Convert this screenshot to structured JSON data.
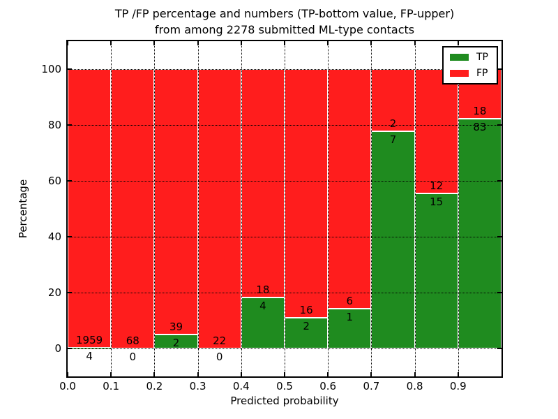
{
  "figure": {
    "title_line1": "TP /FP percentage and numbers (TP-bottom value, FP-upper)",
    "title_line2": "from among 2278 submitted ML-type contacts"
  },
  "chart_data": {
    "type": "bar",
    "subtype": "stacked-percentage-histogram",
    "title": "TP /FP percentage and numbers (TP-bottom value, FP-upper)\nfrom among 2278 submitted ML-type contacts",
    "xlabel": "Predicted probability",
    "ylabel": "Percentage",
    "total_contacts": 2278,
    "xlim": [
      0.0,
      1.0
    ],
    "ylim": [
      -10,
      110
    ],
    "bin_width": 0.1,
    "x_ticks": [
      "0.0",
      "0.1",
      "0.2",
      "0.3",
      "0.4",
      "0.5",
      "0.6",
      "0.7",
      "0.8",
      "0.9"
    ],
    "y_ticks": [
      0,
      20,
      40,
      60,
      80,
      100
    ],
    "grid": "dotted",
    "categories": [
      "0.0-0.1",
      "0.1-0.2",
      "0.2-0.3",
      "0.3-0.4",
      "0.4-0.5",
      "0.5-0.6",
      "0.6-0.7",
      "0.7-0.8",
      "0.8-0.9",
      "0.9-1.0"
    ],
    "series": [
      {
        "name": "TP",
        "color": "#1f8b1f",
        "counts": [
          4,
          0,
          2,
          0,
          4,
          2,
          1,
          7,
          15,
          83
        ],
        "percent": [
          0.2,
          0.0,
          4.88,
          0.0,
          18.18,
          11.11,
          14.29,
          77.78,
          55.56,
          82.18
        ]
      },
      {
        "name": "FP",
        "color": "#ff1d1d",
        "counts": [
          1959,
          68,
          39,
          22,
          18,
          16,
          6,
          2,
          12,
          18
        ],
        "percent": [
          99.8,
          100.0,
          95.12,
          100.0,
          81.82,
          88.89,
          85.71,
          22.22,
          44.44,
          17.82
        ]
      }
    ],
    "legend": {
      "position": "upper right",
      "entries": [
        {
          "label": "TP",
          "color": "#1f8b1f"
        },
        {
          "label": "FP",
          "color": "#ff1d1d"
        }
      ]
    }
  }
}
